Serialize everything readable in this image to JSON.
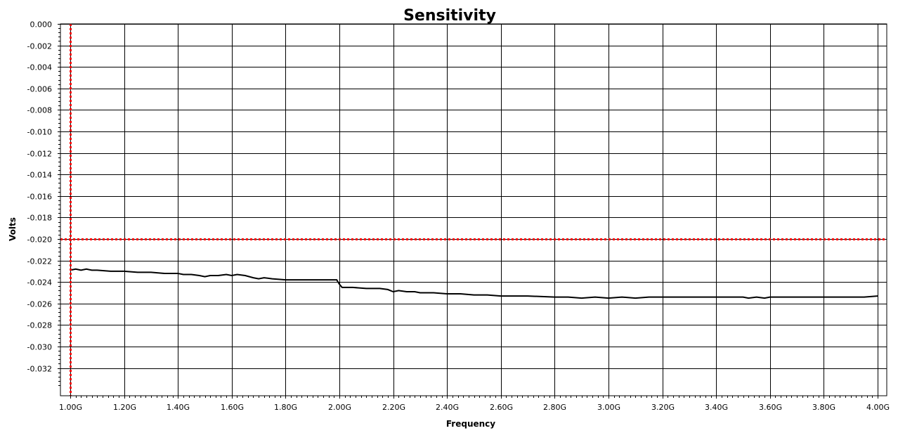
{
  "chart_data": {
    "type": "line",
    "title": "Sensitivity",
    "xlabel": "Frequency",
    "ylabel": "Volts",
    "xlim": [
      1.0,
      4.0
    ],
    "ylim": [
      -0.034,
      0.0
    ],
    "grid": true,
    "x_unit_suffix": "G",
    "x_ticks": [
      1.0,
      1.2,
      1.4,
      1.6,
      1.8,
      2.0,
      2.2,
      2.4,
      2.6,
      2.8,
      3.0,
      3.2,
      3.4,
      3.6,
      3.8,
      4.0
    ],
    "x_tick_labels": [
      "1.00G",
      "1.20G",
      "1.40G",
      "1.60G",
      "1.80G",
      "2.00G",
      "2.20G",
      "2.40G",
      "2.60G",
      "2.80G",
      "3.00G",
      "3.20G",
      "3.40G",
      "3.60G",
      "3.80G",
      "4.00G"
    ],
    "y_ticks": [
      0.0,
      -0.002,
      -0.004,
      -0.006,
      -0.008,
      -0.01,
      -0.012,
      -0.014,
      -0.016,
      -0.018,
      -0.02,
      -0.022,
      -0.024,
      -0.026,
      -0.028,
      -0.03,
      -0.032
    ],
    "y_tick_labels": [
      "0.000",
      "-0.002",
      "-0.004",
      "-0.006",
      "-0.008",
      "-0.010",
      "-0.012",
      "-0.014",
      "-0.016",
      "-0.018",
      "-0.020",
      "-0.022",
      "-0.024",
      "-0.026",
      "-0.028",
      "-0.030",
      "-0.032"
    ],
    "markers": {
      "color": "#ff0000",
      "vertical_x": 1.0,
      "horizontal_y": -0.02
    },
    "series": [
      {
        "color": "#000000",
        "x": [
          1.0,
          1.02,
          1.04,
          1.06,
          1.08,
          1.1,
          1.15,
          1.2,
          1.25,
          1.3,
          1.35,
          1.4,
          1.42,
          1.45,
          1.48,
          1.5,
          1.52,
          1.55,
          1.58,
          1.6,
          1.62,
          1.65,
          1.68,
          1.7,
          1.72,
          1.75,
          1.8,
          1.85,
          1.9,
          1.95,
          1.99,
          2.0,
          2.01,
          2.05,
          2.1,
          2.15,
          2.18,
          2.2,
          2.22,
          2.25,
          2.28,
          2.3,
          2.35,
          2.4,
          2.45,
          2.5,
          2.55,
          2.6,
          2.7,
          2.8,
          2.85,
          2.9,
          2.95,
          3.0,
          3.05,
          3.1,
          3.15,
          3.2,
          3.25,
          3.3,
          3.35,
          3.4,
          3.45,
          3.5,
          3.52,
          3.55,
          3.58,
          3.6,
          3.65,
          3.7,
          3.75,
          3.8,
          3.85,
          3.9,
          3.95,
          4.0
        ],
        "y": [
          -0.0229,
          -0.0228,
          -0.0229,
          -0.0228,
          -0.0229,
          -0.0229,
          -0.023,
          -0.023,
          -0.0231,
          -0.0231,
          -0.0232,
          -0.0232,
          -0.0233,
          -0.0233,
          -0.0234,
          -0.0235,
          -0.0234,
          -0.0234,
          -0.0233,
          -0.0234,
          -0.0233,
          -0.0234,
          -0.0236,
          -0.0237,
          -0.0236,
          -0.0237,
          -0.0238,
          -0.0238,
          -0.0238,
          -0.0238,
          -0.0238,
          -0.0242,
          -0.0245,
          -0.0245,
          -0.0246,
          -0.0246,
          -0.0247,
          -0.0249,
          -0.0248,
          -0.0249,
          -0.0249,
          -0.025,
          -0.025,
          -0.0251,
          -0.0251,
          -0.0252,
          -0.0252,
          -0.0253,
          -0.0253,
          -0.0254,
          -0.0254,
          -0.0255,
          -0.0254,
          -0.0255,
          -0.0254,
          -0.0255,
          -0.0254,
          -0.0254,
          -0.0254,
          -0.0254,
          -0.0254,
          -0.0254,
          -0.0254,
          -0.0254,
          -0.0255,
          -0.0254,
          -0.0255,
          -0.0254,
          -0.0254,
          -0.0254,
          -0.0254,
          -0.0254,
          -0.0254,
          -0.0254,
          -0.0254,
          -0.0253
        ]
      }
    ]
  }
}
